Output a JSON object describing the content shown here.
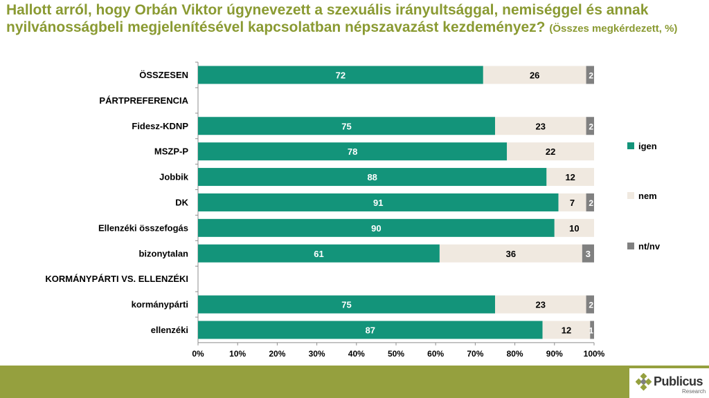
{
  "title": {
    "main": "Hallott arról, hogy Orbán Viktor úgynevezett a szexuális irányultsággal, nemiséggel és annak nyilvánosságbeli megjelenítésével kapcsolatban népszavazást kezdeményez?",
    "sub": "(Összes megkérdezett, %)"
  },
  "colors": {
    "igen": "#13947a",
    "nem": "#f0e9e0",
    "ntnv": "#808080",
    "title": "#8a9a32",
    "footer": "#95a03e"
  },
  "logo": {
    "name": "Publicus",
    "sub": "Research"
  },
  "chart_data": {
    "type": "bar",
    "orientation": "horizontal",
    "stacked": true,
    "title": "Hallott arról, hogy Orbán Viktor úgynevezett a szexuális irányultsággal, nemiséggel és annak nyilvánosságbeli megjelenítésével kapcsolatban népszavazást kezdeményez? (Összes megkérdezett, %)",
    "categories": [
      "ÖSSZESEN",
      "PÁRTPREFERENCIA",
      "Fidesz-KDNP",
      "MSZP-P",
      "Jobbik",
      "DK",
      "Ellenzéki összefogás",
      "bizonytalan",
      "KORMÁNYPÁRTI VS. ELLENZÉKI",
      "kormánypárti",
      "ellenzéki"
    ],
    "series": [
      {
        "name": "igen",
        "values": [
          72,
          null,
          75,
          78,
          88,
          91,
          90,
          61,
          null,
          75,
          87
        ]
      },
      {
        "name": "nem",
        "values": [
          26,
          null,
          23,
          22,
          12,
          7,
          10,
          36,
          null,
          23,
          12
        ]
      },
      {
        "name": "nt/nv",
        "values": [
          2,
          null,
          2,
          null,
          null,
          2,
          null,
          3,
          null,
          2,
          1
        ]
      }
    ],
    "xlim": [
      0,
      100
    ],
    "xticks": [
      "0%",
      "10%",
      "20%",
      "30%",
      "40%",
      "50%",
      "60%",
      "70%",
      "80%",
      "90%",
      "100%"
    ],
    "legend": [
      "igen",
      "nem",
      "nt/nv"
    ],
    "legend_position": "right",
    "grid": false
  }
}
